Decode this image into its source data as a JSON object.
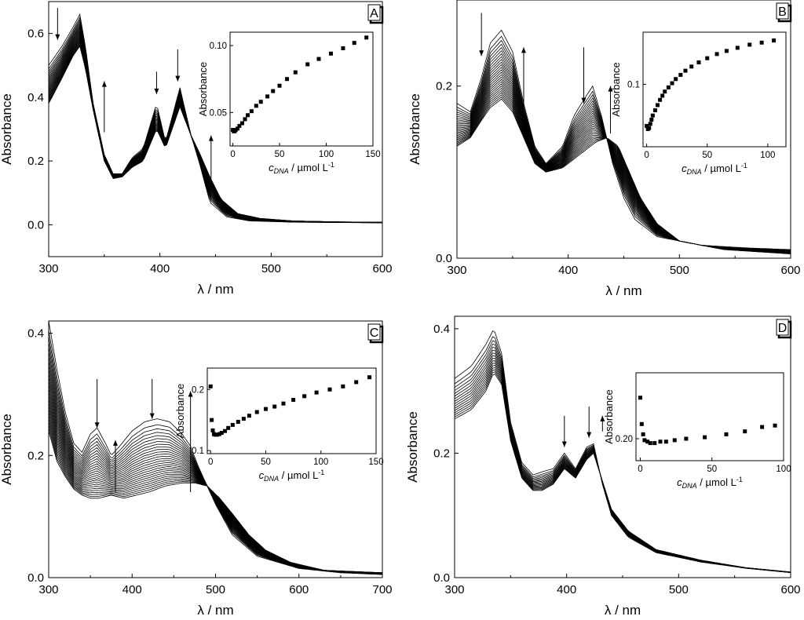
{
  "chart_data": [
    {
      "panel": "A",
      "type": "line",
      "xlabel": "λ / nm",
      "ylabel": "Absorbance",
      "xlim": [
        300,
        600
      ],
      "ylim": [
        -0.1,
        0.7
      ],
      "xticks": [
        300,
        400,
        500,
        600
      ],
      "yticks": [
        0.0,
        0.2,
        0.4,
        0.6
      ],
      "ytick_decimals": 1,
      "spectrum_model": {
        "first": [
          [
            300,
            0.5
          ],
          [
            312,
            0.56
          ],
          [
            322,
            0.62
          ],
          [
            328,
            0.66
          ],
          [
            333,
            0.56
          ],
          [
            340,
            0.38
          ],
          [
            350,
            0.22
          ],
          [
            358,
            0.16
          ],
          [
            366,
            0.16
          ],
          [
            375,
            0.21
          ],
          [
            385,
            0.24
          ],
          [
            397,
            0.38
          ],
          [
            405,
            0.26
          ],
          [
            418,
            0.43
          ],
          [
            428,
            0.28
          ],
          [
            435,
            0.2
          ],
          [
            445,
            0.07
          ],
          [
            460,
            0.025
          ],
          [
            480,
            0.012
          ],
          [
            520,
            0.008
          ],
          [
            560,
            0.007
          ],
          [
            600,
            0.006
          ]
        ],
        "last": [
          [
            300,
            0.38
          ],
          [
            312,
            0.46
          ],
          [
            322,
            0.53
          ],
          [
            328,
            0.56
          ],
          [
            333,
            0.49
          ],
          [
            340,
            0.36
          ],
          [
            350,
            0.2
          ],
          [
            358,
            0.145
          ],
          [
            366,
            0.15
          ],
          [
            375,
            0.18
          ],
          [
            385,
            0.2
          ],
          [
            397,
            0.3
          ],
          [
            405,
            0.24
          ],
          [
            418,
            0.37
          ],
          [
            428,
            0.28
          ],
          [
            435,
            0.23
          ],
          [
            445,
            0.15
          ],
          [
            455,
            0.08
          ],
          [
            470,
            0.035
          ],
          [
            490,
            0.02
          ],
          [
            520,
            0.012
          ],
          [
            560,
            0.009
          ],
          [
            600,
            0.008
          ]
        ],
        "n_curves": 24
      },
      "arrows": [
        {
          "x": 308,
          "y_start": 0.68,
          "y_end": 0.58,
          "direction": "down"
        },
        {
          "x": 350,
          "y_start": 0.29,
          "y_end": 0.45,
          "direction": "up"
        },
        {
          "x": 397,
          "y_start": 0.48,
          "y_end": 0.41,
          "direction": "down"
        },
        {
          "x": 416,
          "y_start": 0.55,
          "y_end": 0.45,
          "direction": "down"
        },
        {
          "x": 446,
          "y_start": 0.14,
          "y_end": 0.28,
          "direction": "up"
        }
      ],
      "inset": {
        "type": "scatter",
        "xlabel_symbol": "c",
        "xlabel_sub": "DNA",
        "xlabel_rest": " / µmol L",
        "xlabel_sup": "-1",
        "ylabel": "Absorbance",
        "xlim": [
          -3,
          150
        ],
        "ylim": [
          0.025,
          0.11
        ],
        "xticks": [
          0,
          50,
          100,
          150
        ],
        "yticks": [
          0.05,
          0.1
        ],
        "ytick_decimals": 2,
        "x": [
          0,
          1,
          2,
          3,
          5,
          7,
          10,
          13,
          16,
          20,
          25,
          30,
          37,
          43,
          50,
          58,
          67,
          80,
          92,
          105,
          118,
          130,
          143
        ],
        "y": [
          0.037,
          0.036,
          0.036,
          0.037,
          0.038,
          0.04,
          0.042,
          0.045,
          0.048,
          0.051,
          0.055,
          0.058,
          0.062,
          0.066,
          0.07,
          0.075,
          0.08,
          0.086,
          0.09,
          0.094,
          0.098,
          0.102,
          0.106
        ]
      }
    },
    {
      "panel": "B",
      "type": "line",
      "xlabel": "λ / nm",
      "ylabel": "Absorbance",
      "xlim": [
        300,
        600
      ],
      "ylim": [
        0.0,
        0.3
      ],
      "xticks": [
        300,
        400,
        500,
        600
      ],
      "yticks": [
        0.0,
        0.2
      ],
      "ytick_decimals": 1,
      "spectrum_model": {
        "first": [
          [
            300,
            0.18
          ],
          [
            312,
            0.17
          ],
          [
            322,
            0.21
          ],
          [
            330,
            0.25
          ],
          [
            340,
            0.265
          ],
          [
            350,
            0.24
          ],
          [
            360,
            0.18
          ],
          [
            370,
            0.13
          ],
          [
            380,
            0.11
          ],
          [
            395,
            0.13
          ],
          [
            405,
            0.165
          ],
          [
            412,
            0.18
          ],
          [
            422,
            0.2
          ],
          [
            430,
            0.165
          ],
          [
            440,
            0.11
          ],
          [
            450,
            0.07
          ],
          [
            460,
            0.045
          ],
          [
            480,
            0.025
          ],
          [
            520,
            0.015
          ],
          [
            560,
            0.012
          ],
          [
            600,
            0.01
          ]
        ],
        "last": [
          [
            300,
            0.13
          ],
          [
            312,
            0.14
          ],
          [
            322,
            0.16
          ],
          [
            330,
            0.175
          ],
          [
            340,
            0.185
          ],
          [
            350,
            0.17
          ],
          [
            360,
            0.14
          ],
          [
            370,
            0.11
          ],
          [
            380,
            0.1
          ],
          [
            395,
            0.105
          ],
          [
            405,
            0.115
          ],
          [
            415,
            0.125
          ],
          [
            425,
            0.135
          ],
          [
            435,
            0.14
          ],
          [
            445,
            0.13
          ],
          [
            455,
            0.1
          ],
          [
            465,
            0.07
          ],
          [
            480,
            0.04
          ],
          [
            500,
            0.02
          ],
          [
            540,
            0.01
          ],
          [
            600,
            0.005
          ]
        ],
        "n_curves": 26
      },
      "arrows": [
        {
          "x": 322,
          "y_start": 0.285,
          "y_end": 0.235,
          "direction": "down"
        },
        {
          "x": 360,
          "y_start": 0.175,
          "y_end": 0.245,
          "direction": "up"
        },
        {
          "x": 414,
          "y_start": 0.245,
          "y_end": 0.18,
          "direction": "down"
        },
        {
          "x": 438,
          "y_start": 0.145,
          "y_end": 0.2,
          "direction": "up"
        }
      ],
      "inset": {
        "type": "scatter",
        "xlabel_symbol": "c",
        "xlabel_sub": "DNA",
        "xlabel_rest": " / µmol L",
        "xlabel_sup": "-1",
        "ylabel": "Absorbance",
        "xlim": [
          -3,
          115
        ],
        "ylim": [
          0.04,
          0.15
        ],
        "xticks": [
          0,
          50,
          100
        ],
        "yticks": [
          0.1
        ],
        "ytick_decimals": 1,
        "x": [
          0,
          1,
          2,
          3,
          4,
          5,
          7,
          9,
          11,
          13,
          15,
          18,
          21,
          24,
          28,
          32,
          37,
          43,
          50,
          58,
          66,
          75,
          85,
          95,
          105
        ],
        "y": [
          0.06,
          0.057,
          0.058,
          0.062,
          0.066,
          0.07,
          0.075,
          0.08,
          0.085,
          0.089,
          0.093,
          0.097,
          0.101,
          0.105,
          0.109,
          0.113,
          0.117,
          0.121,
          0.125,
          0.129,
          0.132,
          0.135,
          0.138,
          0.14,
          0.142
        ]
      }
    },
    {
      "panel": "C",
      "type": "line",
      "xlabel": "λ / nm",
      "ylabel": "Absorbance",
      "xlim": [
        300,
        700
      ],
      "ylim": [
        0.0,
        0.42
      ],
      "xticks": [
        300,
        400,
        500,
        600,
        700
      ],
      "yticks": [
        0.0,
        0.2,
        0.4
      ],
      "ytick_decimals": 1,
      "spectrum_model": {
        "first": [
          [
            300,
            0.42
          ],
          [
            310,
            0.34
          ],
          [
            320,
            0.27
          ],
          [
            330,
            0.22
          ],
          [
            340,
            0.205
          ],
          [
            350,
            0.235
          ],
          [
            358,
            0.245
          ],
          [
            368,
            0.22
          ],
          [
            375,
            0.2
          ],
          [
            385,
            0.215
          ],
          [
            400,
            0.24
          ],
          [
            415,
            0.255
          ],
          [
            430,
            0.26
          ],
          [
            445,
            0.255
          ],
          [
            460,
            0.235
          ],
          [
            470,
            0.215
          ],
          [
            480,
            0.18
          ],
          [
            500,
            0.12
          ],
          [
            520,
            0.07
          ],
          [
            550,
            0.035
          ],
          [
            600,
            0.015
          ],
          [
            650,
            0.008
          ],
          [
            700,
            0.005
          ]
        ],
        "last": [
          [
            300,
            0.24
          ],
          [
            310,
            0.19
          ],
          [
            320,
            0.165
          ],
          [
            330,
            0.145
          ],
          [
            340,
            0.135
          ],
          [
            350,
            0.13
          ],
          [
            360,
            0.13
          ],
          [
            375,
            0.135
          ],
          [
            390,
            0.13
          ],
          [
            405,
            0.135
          ],
          [
            420,
            0.14
          ],
          [
            440,
            0.15
          ],
          [
            460,
            0.155
          ],
          [
            475,
            0.155
          ],
          [
            490,
            0.15
          ],
          [
            505,
            0.13
          ],
          [
            520,
            0.105
          ],
          [
            540,
            0.07
          ],
          [
            560,
            0.045
          ],
          [
            590,
            0.025
          ],
          [
            630,
            0.012
          ],
          [
            700,
            0.008
          ]
        ],
        "n_curves": 28
      },
      "arrows": [
        {
          "x": 358,
          "y_start": 0.325,
          "y_end": 0.245,
          "direction": "down"
        },
        {
          "x": 380,
          "y_start": 0.14,
          "y_end": 0.225,
          "direction": "up"
        },
        {
          "x": 424,
          "y_start": 0.325,
          "y_end": 0.26,
          "direction": "down"
        },
        {
          "x": 470,
          "y_start": 0.14,
          "y_end": 0.305,
          "direction": "up"
        }
      ],
      "inset": {
        "type": "scatter",
        "xlabel_symbol": "c",
        "xlabel_sub": "DNA",
        "xlabel_rest": " / µmol L",
        "xlabel_sup": "-1",
        "ylabel": "Absorbance",
        "xlim": [
          -3,
          150
        ],
        "ylim": [
          0.095,
          0.235
        ],
        "xticks": [
          0,
          50,
          100,
          150
        ],
        "yticks": [
          0.1,
          0.2
        ],
        "ytick_decimals": 1,
        "x": [
          0,
          1,
          2,
          3,
          4,
          6,
          8,
          10,
          13,
          16,
          20,
          25,
          30,
          35,
          42,
          50,
          58,
          66,
          75,
          85,
          96,
          108,
          120,
          132,
          144
        ],
        "y": [
          0.205,
          0.15,
          0.133,
          0.127,
          0.126,
          0.126,
          0.127,
          0.129,
          0.132,
          0.137,
          0.142,
          0.147,
          0.152,
          0.157,
          0.163,
          0.168,
          0.172,
          0.177,
          0.183,
          0.189,
          0.195,
          0.2,
          0.205,
          0.212,
          0.22
        ]
      }
    },
    {
      "panel": "D",
      "type": "line",
      "xlabel": "λ / nm",
      "ylabel": "Absorbance",
      "xlim": [
        300,
        600
      ],
      "ylim": [
        0.0,
        0.42
      ],
      "xticks": [
        300,
        400,
        500,
        600
      ],
      "yticks": [
        0.0,
        0.2,
        0.4
      ],
      "ytick_decimals": 1,
      "spectrum_model": {
        "first": [
          [
            300,
            0.32
          ],
          [
            315,
            0.34
          ],
          [
            328,
            0.375
          ],
          [
            335,
            0.4
          ],
          [
            342,
            0.36
          ],
          [
            350,
            0.25
          ],
          [
            360,
            0.185
          ],
          [
            370,
            0.165
          ],
          [
            378,
            0.17
          ],
          [
            388,
            0.175
          ],
          [
            398,
            0.2
          ],
          [
            408,
            0.175
          ],
          [
            418,
            0.21
          ],
          [
            424,
            0.215
          ],
          [
            432,
            0.15
          ],
          [
            440,
            0.1
          ],
          [
            455,
            0.065
          ],
          [
            480,
            0.04
          ],
          [
            520,
            0.025
          ],
          [
            560,
            0.015
          ],
          [
            600,
            0.008
          ]
        ],
        "last": [
          [
            300,
            0.255
          ],
          [
            315,
            0.27
          ],
          [
            328,
            0.3
          ],
          [
            335,
            0.33
          ],
          [
            342,
            0.31
          ],
          [
            350,
            0.22
          ],
          [
            360,
            0.16
          ],
          [
            370,
            0.14
          ],
          [
            378,
            0.14
          ],
          [
            388,
            0.15
          ],
          [
            398,
            0.175
          ],
          [
            408,
            0.16
          ],
          [
            418,
            0.19
          ],
          [
            424,
            0.2
          ],
          [
            432,
            0.155
          ],
          [
            440,
            0.11
          ],
          [
            455,
            0.075
          ],
          [
            480,
            0.045
          ],
          [
            520,
            0.028
          ],
          [
            560,
            0.016
          ],
          [
            600,
            0.009
          ]
        ],
        "n_curves": 16
      },
      "arrows": [
        {
          "x": 398,
          "y_start": 0.26,
          "y_end": 0.21,
          "direction": "down"
        },
        {
          "x": 420,
          "y_start": 0.275,
          "y_end": 0.225,
          "direction": "down"
        },
        {
          "x": 432,
          "y_start": 0.235,
          "y_end": 0.26,
          "direction": "up"
        }
      ],
      "inset": {
        "type": "scatter",
        "xlabel_symbol": "c",
        "xlabel_sub": "DNA",
        "xlabel_rest": " / µmol L",
        "xlabel_sup": "-1",
        "ylabel": "Absorbance",
        "xlim": [
          -3,
          100
        ],
        "ylim": [
          0.185,
          0.245
        ],
        "xticks": [
          0,
          50,
          100
        ],
        "yticks": [
          0.2
        ],
        "ytick_decimals": 2,
        "x": [
          0,
          1,
          2,
          3,
          5,
          7,
          10,
          14,
          18,
          24,
          32,
          45,
          60,
          73,
          85,
          94
        ],
        "y": [
          0.228,
          0.21,
          0.203,
          0.199,
          0.198,
          0.197,
          0.197,
          0.198,
          0.198,
          0.199,
          0.2,
          0.201,
          0.203,
          0.205,
          0.208,
          0.209
        ]
      }
    }
  ]
}
